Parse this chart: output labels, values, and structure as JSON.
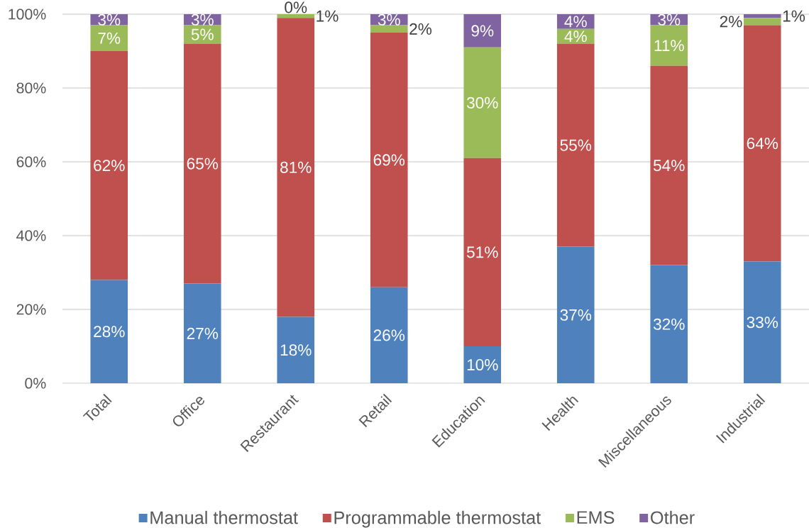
{
  "chart_data": {
    "type": "bar",
    "stacked": true,
    "categories": [
      "Total",
      "Office",
      "Restaurant",
      "Retail",
      "Education",
      "Health",
      "Miscellaneous",
      "Industrial"
    ],
    "series": [
      {
        "name": "Manual thermostat",
        "color": "#4f81bd",
        "values": [
          28,
          27,
          18,
          26,
          10,
          37,
          32,
          33
        ],
        "value_labels": [
          "28%",
          "27%",
          "18%",
          "26%",
          "10%",
          "37%",
          "32%",
          "33%"
        ]
      },
      {
        "name": "Programmable thermostat",
        "color": "#c0504d",
        "values": [
          62,
          65,
          81,
          69,
          51,
          55,
          54,
          64
        ],
        "value_labels": [
          "62%",
          "65%",
          "81%",
          "69%",
          "51%",
          "55%",
          "54%",
          "64%"
        ]
      },
      {
        "name": "EMS",
        "color": "#9bbb59",
        "values": [
          7,
          5,
          1,
          2,
          30,
          4,
          11,
          2
        ],
        "value_labels": [
          "7%",
          "5%",
          "1%",
          "2%",
          "30%",
          "4%",
          "11%",
          "2%"
        ]
      },
      {
        "name": "Other",
        "color": "#8064a2",
        "values": [
          3,
          3,
          0,
          3,
          9,
          4,
          3,
          1
        ],
        "value_labels": [
          "3%",
          "3%",
          "0%",
          "3%",
          "9%",
          "4%",
          "3%",
          "1%"
        ]
      }
    ],
    "ylim": [
      0,
      100
    ],
    "yticks": [
      {
        "value": 0,
        "label": "0%"
      },
      {
        "value": 20,
        "label": "20%"
      },
      {
        "value": 40,
        "label": "40%"
      },
      {
        "value": 60,
        "label": "60%"
      },
      {
        "value": 80,
        "label": "80%"
      },
      {
        "value": 100,
        "label": "100%"
      }
    ],
    "grid": "y",
    "legend": "bottom"
  }
}
